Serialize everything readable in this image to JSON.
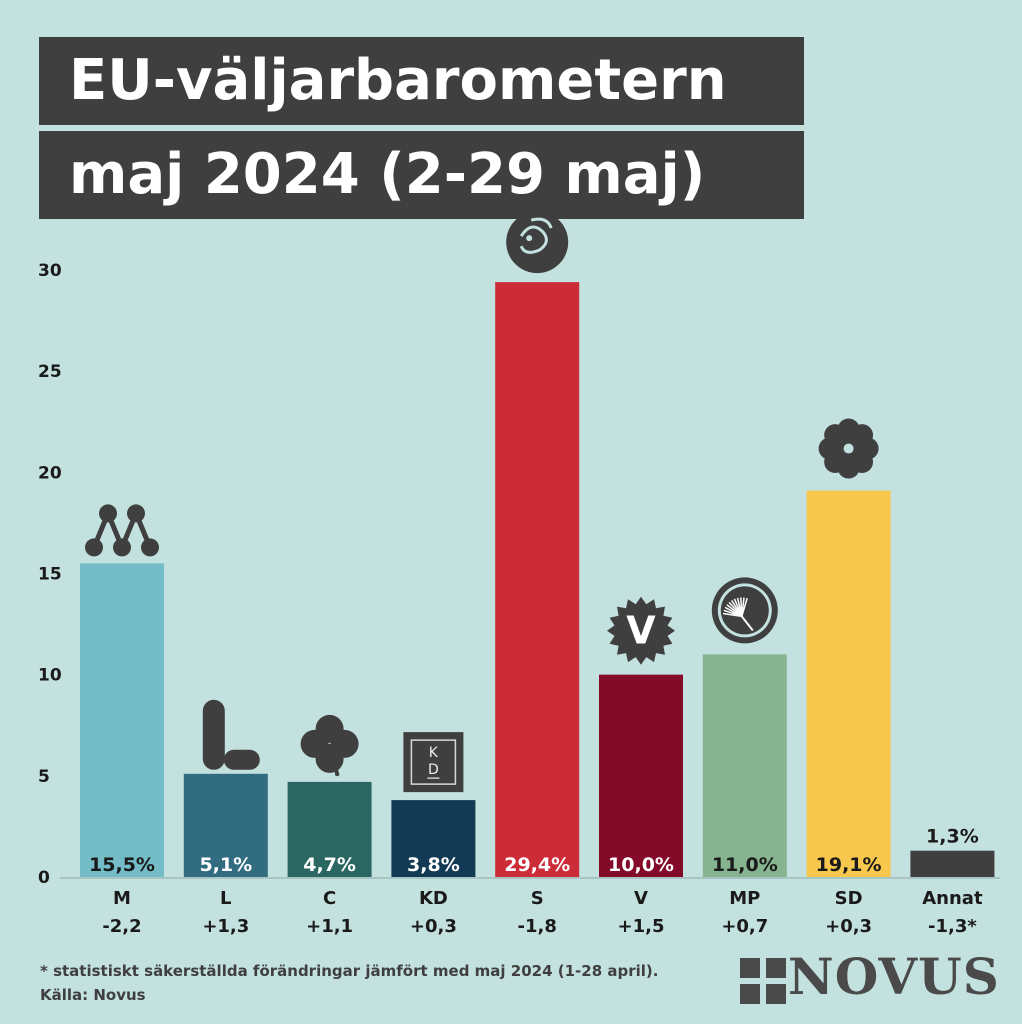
{
  "title": {
    "line1": "EU-väljarbarometern",
    "line2": "maj 2024 (2-29 maj)"
  },
  "chart_data": {
    "type": "bar",
    "categories": [
      "M",
      "L",
      "C",
      "KD",
      "S",
      "V",
      "MP",
      "SD",
      "Annat"
    ],
    "values": [
      15.5,
      5.1,
      4.7,
      3.8,
      29.4,
      10.0,
      11.0,
      19.1,
      1.3
    ],
    "value_labels": [
      "15,5%",
      "5,1%",
      "4,7%",
      "3,8%",
      "29,4%",
      "10,0%",
      "11,0%",
      "19,1%",
      "1,3%"
    ],
    "changes": [
      "-2,2",
      "+1,3",
      "+1,1",
      "+0,3",
      "-1,8",
      "+1,5",
      "+0,7",
      "+0,3",
      "-1,3*"
    ],
    "colors": [
      "#74bcc7",
      "#316c80",
      "#2a6762",
      "#133a55",
      "#cc2b38",
      "#840a2a",
      "#86b390",
      "#f8c84e",
      "#3f3f3f"
    ],
    "label_colors": [
      "#1a1a1a",
      "#ffffff",
      "#ffffff",
      "#ffffff",
      "#ffffff",
      "#ffffff",
      "#1a1a1a",
      "#1a1a1a",
      "#1a1a1a"
    ],
    "icons": [
      "m-party-logo-icon",
      "l-party-logo-icon",
      "c-party-clover-icon",
      "kd-party-logo-icon",
      "s-party-rose-icon",
      "v-party-logo-icon",
      "mp-party-dandelion-icon",
      "sd-party-flower-icon",
      ""
    ],
    "yticks": [
      0,
      5,
      10,
      15,
      20,
      25,
      30
    ],
    "ytick_labels": [
      "0",
      "5",
      "10",
      "15",
      "20",
      "25",
      "30"
    ],
    "ylim": [
      0,
      30
    ],
    "grid": false
  },
  "footnote": "* statistiskt säkerställda förändringar jämfört med maj 2024 (1-28 april).",
  "source": "Källa: Novus",
  "brand": "NOVUS"
}
